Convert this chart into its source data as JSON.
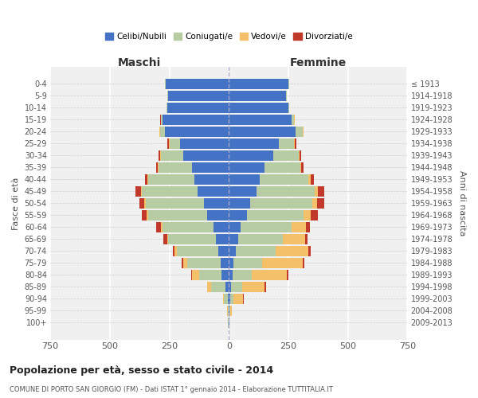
{
  "age_groups": [
    "0-4",
    "5-9",
    "10-14",
    "15-19",
    "20-24",
    "25-29",
    "30-34",
    "35-39",
    "40-44",
    "45-49",
    "50-54",
    "55-59",
    "60-64",
    "65-69",
    "70-74",
    "75-79",
    "80-84",
    "85-89",
    "90-94",
    "95-99",
    "100+"
  ],
  "birth_years": [
    "2009-2013",
    "2004-2008",
    "1999-2003",
    "1994-1998",
    "1989-1993",
    "1984-1988",
    "1979-1983",
    "1974-1978",
    "1969-1973",
    "1964-1968",
    "1959-1963",
    "1954-1958",
    "1949-1953",
    "1944-1948",
    "1939-1943",
    "1934-1938",
    "1929-1933",
    "1924-1928",
    "1919-1923",
    "1914-1918",
    "≤ 1913"
  ],
  "maschi": {
    "celibi": [
      265,
      255,
      260,
      280,
      270,
      205,
      190,
      155,
      145,
      130,
      105,
      90,
      65,
      55,
      45,
      35,
      30,
      15,
      5,
      2,
      2
    ],
    "coniugati": [
      2,
      2,
      2,
      5,
      20,
      45,
      95,
      140,
      195,
      235,
      245,
      250,
      215,
      200,
      175,
      140,
      95,
      60,
      15,
      3,
      1
    ],
    "vedovi": [
      0,
      0,
      0,
      1,
      1,
      2,
      2,
      2,
      2,
      3,
      4,
      4,
      5,
      5,
      10,
      18,
      30,
      15,
      5,
      1,
      0
    ],
    "divorziati": [
      0,
      0,
      0,
      2,
      2,
      5,
      8,
      10,
      10,
      25,
      20,
      20,
      20,
      15,
      5,
      5,
      2,
      2,
      0,
      0,
      0
    ]
  },
  "femmine": {
    "nubili": [
      250,
      240,
      250,
      265,
      280,
      210,
      185,
      150,
      130,
      115,
      90,
      75,
      50,
      40,
      30,
      20,
      15,
      10,
      5,
      3,
      2
    ],
    "coniugate": [
      2,
      3,
      5,
      10,
      30,
      65,
      110,
      150,
      205,
      245,
      260,
      240,
      215,
      185,
      165,
      120,
      80,
      45,
      15,
      3,
      1
    ],
    "vedove": [
      0,
      0,
      0,
      1,
      2,
      2,
      3,
      5,
      8,
      15,
      20,
      30,
      60,
      95,
      140,
      170,
      150,
      95,
      40,
      5,
      1
    ],
    "divorziate": [
      0,
      0,
      0,
      1,
      2,
      5,
      5,
      8,
      15,
      25,
      30,
      30,
      15,
      10,
      8,
      8,
      5,
      5,
      2,
      0,
      0
    ]
  },
  "colors": {
    "celibi_nubili": "#4472c4",
    "coniugati": "#b8cca4",
    "vedovi": "#f5c06a",
    "divorziati": "#c0392b"
  },
  "title": "Popolazione per età, sesso e stato civile - 2014",
  "subtitle": "COMUNE DI PORTO SAN GIORGIO (FM) - Dati ISTAT 1° gennaio 2014 - Elaborazione TUTTITALIA.IT",
  "xlabel_left": "Maschi",
  "xlabel_right": "Femmine",
  "ylabel_left": "Fasce di età",
  "ylabel_right": "Anni di nascita",
  "xlim": 750,
  "bg_color": "#f0f0f0",
  "legend_labels": [
    "Celibi/Nubili",
    "Coniugati/e",
    "Vedovi/e",
    "Divorziati/e"
  ]
}
